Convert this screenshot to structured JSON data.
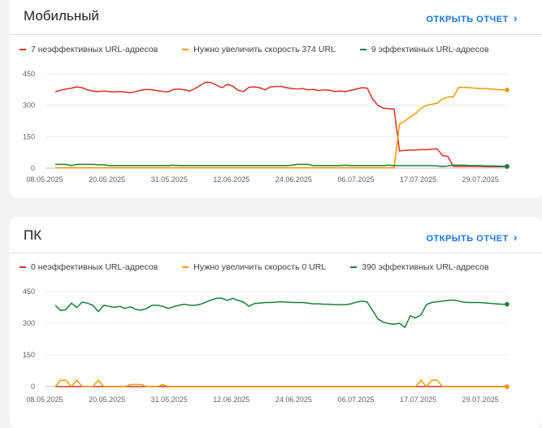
{
  "colors": {
    "red": "#d93025",
    "orange": "#f29900",
    "green": "#188038",
    "link": "#1a73e8"
  },
  "cards": [
    {
      "title": "Мобильный",
      "open_label": "ОТКРЫТЬ ОТЧЕТ",
      "legend": [
        {
          "label": "7 неэффективных URL-адресов",
          "color": "#d93025"
        },
        {
          "label": "Нужно увеличить скорость 374 URL",
          "color": "#f29900"
        },
        {
          "label": "9 эффективных URL-адресов",
          "color": "#188038"
        }
      ]
    },
    {
      "title": "ПК",
      "open_label": "ОТКРЫТЬ ОТЧЕТ",
      "legend": [
        {
          "label": "0 неэффективных URL-адресов",
          "color": "#d93025"
        },
        {
          "label": "Нужно увеличить скорость 0 URL",
          "color": "#f29900"
        },
        {
          "label": "390 эффективных URL-адресов",
          "color": "#188038"
        }
      ]
    }
  ],
  "chart_data": [
    {
      "type": "line",
      "ylim": [
        0,
        450
      ],
      "yticks": [
        "450",
        "300",
        "150",
        "0"
      ],
      "xticks": [
        "08.05.2025",
        "20.05.2025",
        "31.05.2025",
        "12.06.2025",
        "24.06.2025",
        "06.07.2025",
        "17.07.2025",
        "29.07.2025"
      ],
      "series": [
        {
          "name": "7 неэффективных URL-адресов",
          "color": "#d93025",
          "values": [
            365,
            372,
            378,
            382,
            388,
            384,
            374,
            368,
            366,
            368,
            366,
            364,
            366,
            364,
            360,
            366,
            372,
            376,
            374,
            370,
            366,
            364,
            376,
            378,
            374,
            368,
            380,
            396,
            410,
            408,
            396,
            384,
            400,
            392,
            372,
            366,
            386,
            388,
            384,
            374,
            388,
            390,
            390,
            384,
            380,
            378,
            380,
            374,
            376,
            370,
            374,
            372,
            366,
            368,
            366,
            372,
            378,
            384,
            382,
            330,
            300,
            286,
            284,
            282,
            82,
            84,
            86,
            86,
            88,
            88,
            90,
            92,
            60,
            56,
            8,
            8,
            8,
            8,
            8,
            8,
            7,
            7,
            7,
            7,
            7
          ]
        },
        {
          "name": "Нужно увеличить скорость 374 URL",
          "color": "#f29900",
          "values": [
            2,
            2,
            2,
            2,
            2,
            2,
            2,
            2,
            2,
            2,
            2,
            2,
            2,
            2,
            2,
            2,
            2,
            2,
            2,
            2,
            2,
            2,
            2,
            2,
            2,
            2,
            2,
            2,
            2,
            2,
            2,
            2,
            2,
            2,
            2,
            2,
            2,
            2,
            2,
            2,
            2,
            2,
            2,
            2,
            2,
            2,
            2,
            2,
            2,
            2,
            2,
            2,
            2,
            2,
            2,
            2,
            2,
            2,
            2,
            2,
            2,
            2,
            2,
            2,
            210,
            225,
            245,
            262,
            285,
            300,
            305,
            310,
            330,
            340,
            340,
            385,
            386,
            384,
            382,
            380,
            380,
            378,
            376,
            374,
            374
          ]
        },
        {
          "name": "9 эффективных URL-адресов",
          "color": "#188038",
          "values": [
            18,
            18,
            18,
            12,
            18,
            18,
            18,
            18,
            16,
            16,
            12,
            12,
            12,
            12,
            12,
            12,
            12,
            12,
            12,
            12,
            12,
            12,
            14,
            12,
            12,
            12,
            12,
            12,
            12,
            12,
            12,
            12,
            12,
            12,
            12,
            12,
            12,
            12,
            12,
            12,
            12,
            12,
            12,
            12,
            14,
            18,
            18,
            18,
            12,
            12,
            12,
            12,
            12,
            12,
            14,
            12,
            12,
            12,
            12,
            12,
            12,
            12,
            14,
            12,
            12,
            12,
            12,
            12,
            12,
            12,
            12,
            10,
            8,
            10,
            14,
            14,
            14,
            12,
            12,
            12,
            10,
            10,
            10,
            9,
            9
          ]
        }
      ]
    },
    {
      "type": "line",
      "ylim": [
        0,
        450
      ],
      "yticks": [
        "450",
        "300",
        "150",
        "0"
      ],
      "xticks": [
        "08.05.2025",
        "20.05.2025",
        "31.05.2025",
        "12.06.2025",
        "24.06.2025",
        "06.07.2025",
        "17.07.2025",
        "29.07.2025"
      ],
      "series": [
        {
          "name": "0 неэффективных URL-адресов",
          "color": "#d93025",
          "values": [
            0,
            0,
            0,
            0,
            0,
            0,
            0,
            0,
            0,
            0,
            0,
            0,
            0,
            0,
            0,
            0,
            0,
            0,
            0,
            0,
            0,
            0,
            0,
            0,
            0,
            0,
            0,
            0,
            0,
            0,
            0,
            0,
            0,
            0,
            0,
            0,
            0,
            0,
            0,
            0,
            0,
            0,
            0,
            0,
            0,
            0,
            0,
            0,
            0,
            0,
            0,
            0,
            0,
            0,
            0,
            0,
            0,
            0,
            0,
            0,
            0,
            0,
            0,
            0,
            0,
            0,
            0,
            0,
            0,
            0,
            0,
            0,
            0,
            0,
            0,
            0,
            0,
            0,
            0,
            0,
            0,
            0,
            0,
            0,
            0
          ]
        },
        {
          "name": "Нужно увеличить скорость 0 URL",
          "color": "#f29900",
          "values": [
            0,
            30,
            30,
            0,
            30,
            0,
            0,
            0,
            30,
            0,
            0,
            0,
            0,
            0,
            10,
            10,
            10,
            0,
            0,
            0,
            10,
            0,
            0,
            0,
            0,
            0,
            0,
            0,
            0,
            0,
            0,
            0,
            0,
            0,
            0,
            0,
            0,
            0,
            0,
            0,
            0,
            0,
            0,
            0,
            0,
            0,
            0,
            0,
            0,
            0,
            0,
            0,
            0,
            0,
            0,
            0,
            0,
            0,
            0,
            0,
            0,
            0,
            0,
            0,
            0,
            0,
            0,
            0,
            30,
            0,
            30,
            30,
            0,
            0,
            0,
            0,
            0,
            0,
            0,
            0,
            0,
            0,
            0,
            0,
            0
          ]
        },
        {
          "name": "390 эффективных URL-адресов",
          "color": "#188038",
          "values": [
            385,
            360,
            365,
            395,
            375,
            400,
            395,
            385,
            355,
            385,
            380,
            375,
            380,
            370,
            378,
            365,
            362,
            370,
            385,
            385,
            380,
            370,
            378,
            385,
            390,
            385,
            385,
            390,
            400,
            410,
            418,
            418,
            408,
            418,
            408,
            400,
            380,
            393,
            395,
            398,
            398,
            400,
            402,
            400,
            398,
            398,
            398,
            395,
            392,
            392,
            390,
            390,
            388,
            388,
            388,
            392,
            400,
            405,
            400,
            360,
            320,
            305,
            298,
            295,
            300,
            280,
            335,
            325,
            340,
            388,
            398,
            402,
            405,
            408,
            410,
            405,
            400,
            398,
            398,
            398,
            396,
            394,
            392,
            390,
            390
          ]
        }
      ]
    }
  ]
}
